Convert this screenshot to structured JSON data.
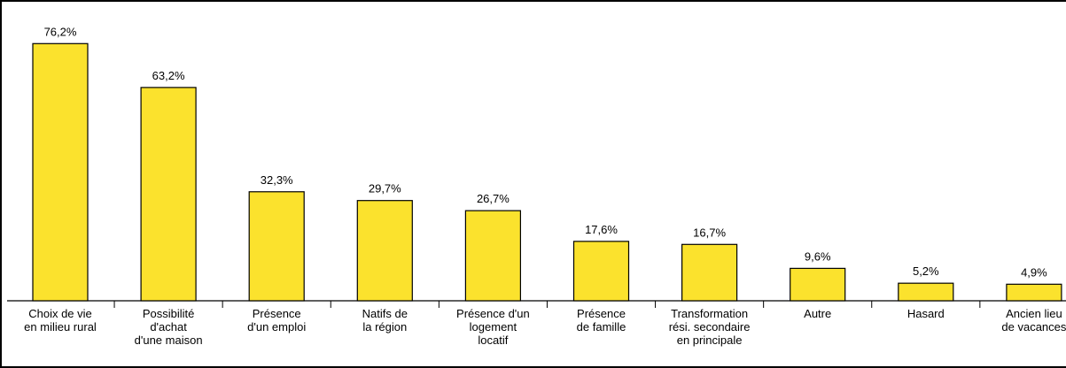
{
  "chart_data": {
    "type": "bar",
    "title": "",
    "xlabel": "",
    "ylabel": "",
    "ylim": [
      0,
      80
    ],
    "grid": false,
    "legend": "none",
    "bar_color": "#fbe22d",
    "categories": [
      [
        "Choix de vie",
        "en milieu rural"
      ],
      [
        "Possibilité",
        "d'achat",
        "d'une maison"
      ],
      [
        "Présence",
        "d'un emploi"
      ],
      [
        "Natifs de",
        "la région"
      ],
      [
        "Présence d'un",
        "logement",
        "locatif"
      ],
      [
        "Présence",
        "de famille"
      ],
      [
        "Transformation",
        "rési. secondaire",
        "en principale"
      ],
      [
        "Autre"
      ],
      [
        "Hasard"
      ],
      [
        "Ancien lieu",
        "de vacances"
      ]
    ],
    "values": [
      76.2,
      63.2,
      32.3,
      29.7,
      26.7,
      17.6,
      16.7,
      9.6,
      5.2,
      4.9
    ],
    "value_labels": [
      "76,2%",
      "63,2%",
      "32,3%",
      "29,7%",
      "26,7%",
      "17,6%",
      "16,7%",
      "9,6%",
      "5,2%",
      "4,9%"
    ]
  }
}
